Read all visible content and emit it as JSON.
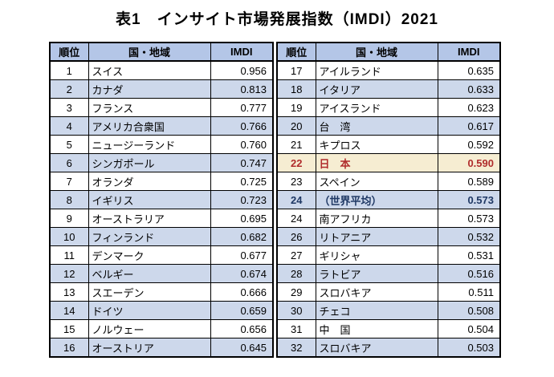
{
  "title": "表1　インサイト市場発展指数（IMDI）2021",
  "headers": {
    "rank": "順位",
    "country": "国・地域",
    "imdi": "IMDI"
  },
  "colors": {
    "header_bg": "#B4C6E7",
    "band_bg": "#CDD8EB",
    "japan_row_bg": "#F6EDD2",
    "japan_row_text": "#B02C2C",
    "world_avg_text": "#1F3864",
    "border": "#000000"
  },
  "left_rows": [
    {
      "rank": "1",
      "country": "スイス",
      "imdi": "0.956"
    },
    {
      "rank": "2",
      "country": "カナダ",
      "imdi": "0.813"
    },
    {
      "rank": "3",
      "country": "フランス",
      "imdi": "0.777"
    },
    {
      "rank": "4",
      "country": "アメリカ合衆国",
      "imdi": "0.766"
    },
    {
      "rank": "5",
      "country": "ニュージーランド",
      "imdi": "0.760"
    },
    {
      "rank": "6",
      "country": "シンガポール",
      "imdi": "0.747"
    },
    {
      "rank": "7",
      "country": "オランダ",
      "imdi": "0.725"
    },
    {
      "rank": "8",
      "country": "イギリス",
      "imdi": "0.723"
    },
    {
      "rank": "9",
      "country": "オーストラリア",
      "imdi": "0.695"
    },
    {
      "rank": "10",
      "country": "フィンランド",
      "imdi": "0.682"
    },
    {
      "rank": "11",
      "country": "デンマーク",
      "imdi": "0.677"
    },
    {
      "rank": "12",
      "country": "ベルギー",
      "imdi": "0.674"
    },
    {
      "rank": "13",
      "country": "スエーデン",
      "imdi": "0.666"
    },
    {
      "rank": "14",
      "country": "ドイツ",
      "imdi": "0.659"
    },
    {
      "rank": "15",
      "country": "ノルウェー",
      "imdi": "0.656"
    },
    {
      "rank": "16",
      "country": "オーストリア",
      "imdi": "0.645"
    }
  ],
  "right_rows": [
    {
      "rank": "17",
      "country": "アイルランド",
      "imdi": "0.635"
    },
    {
      "rank": "18",
      "country": "イタリア",
      "imdi": "0.633"
    },
    {
      "rank": "19",
      "country": "アイスランド",
      "imdi": "0.623"
    },
    {
      "rank": "20",
      "country": "台　湾",
      "imdi": "0.617"
    },
    {
      "rank": "21",
      "country": "キプロス",
      "imdi": "0.592"
    },
    {
      "rank": "22",
      "country": "日　本",
      "imdi": "0.590",
      "style": "japan"
    },
    {
      "rank": "23",
      "country": "スペイン",
      "imdi": "0.589"
    },
    {
      "rank": "24",
      "country": "（世界平均）",
      "imdi": "0.573",
      "style": "avg"
    },
    {
      "rank": "24",
      "country": "南アフリカ",
      "imdi": "0.573"
    },
    {
      "rank": "26",
      "country": "リトアニア",
      "imdi": "0.532"
    },
    {
      "rank": "27",
      "country": "ギリシャ",
      "imdi": "0.531"
    },
    {
      "rank": "28",
      "country": "ラトビア",
      "imdi": "0.516"
    },
    {
      "rank": "29",
      "country": "スロバキア",
      "imdi": "0.511"
    },
    {
      "rank": "30",
      "country": "チェコ",
      "imdi": "0.508"
    },
    {
      "rank": "31",
      "country": "中　国",
      "imdi": "0.504"
    },
    {
      "rank": "32",
      "country": "スロバキア",
      "imdi": "0.503"
    }
  ]
}
